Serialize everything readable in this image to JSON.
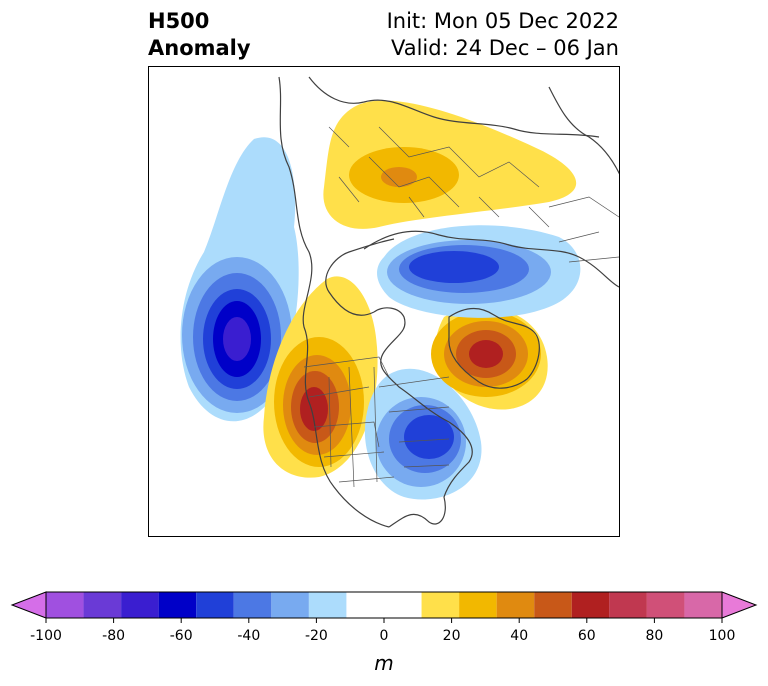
{
  "header": {
    "left_line1": "H500",
    "left_line2": "Anomaly",
    "right_line1": "Init: Mon 05 Dec 2022",
    "right_line2": "Valid: 24 Dec – 06 Jan"
  },
  "colorbar": {
    "unit": "m",
    "tick_labels": [
      "-100",
      "-80",
      "-60",
      "-40",
      "-20",
      "0",
      "20",
      "40",
      "60",
      "80",
      "100"
    ],
    "levels": [
      -100,
      -90,
      -80,
      -70,
      -60,
      -50,
      -40,
      -30,
      -20,
      -10,
      10,
      20,
      30,
      40,
      50,
      60,
      70,
      80,
      90,
      100
    ],
    "colors": [
      "#d56ee8",
      "#a050e0",
      "#6a3ad6",
      "#3a1ed0",
      "#0000c8",
      "#2040d8",
      "#4c78e4",
      "#78aaf0",
      "#acdcfc",
      "#ffffff",
      "#ffe04a",
      "#f2b800",
      "#e08a10",
      "#c85818",
      "#b02020",
      "#c03850",
      "#d05078",
      "#d868a8",
      "#e87ad8"
    ],
    "extend": "both"
  },
  "map": {
    "projection": "polar stereographic (North America / Arctic)",
    "features": [
      "coastlines",
      "country borders",
      "US state borders"
    ],
    "anomaly_centers": [
      {
        "sign": "negative",
        "location": "Gulf of Alaska / NE Pacific",
        "peak_level": -70
      },
      {
        "sign": "positive",
        "location": "Western North America",
        "peak_level": 60
      },
      {
        "sign": "negative",
        "location": "Eastern North America / Hudson Bay",
        "peak_level": -50
      },
      {
        "sign": "positive",
        "location": "Greenland / North Atlantic",
        "peak_level": 60
      },
      {
        "sign": "negative",
        "location": "Siberia / Arctic",
        "peak_level": -60
      },
      {
        "sign": "positive",
        "location": "Eastern Europe / NW Russia",
        "peak_level": 30
      }
    ]
  }
}
